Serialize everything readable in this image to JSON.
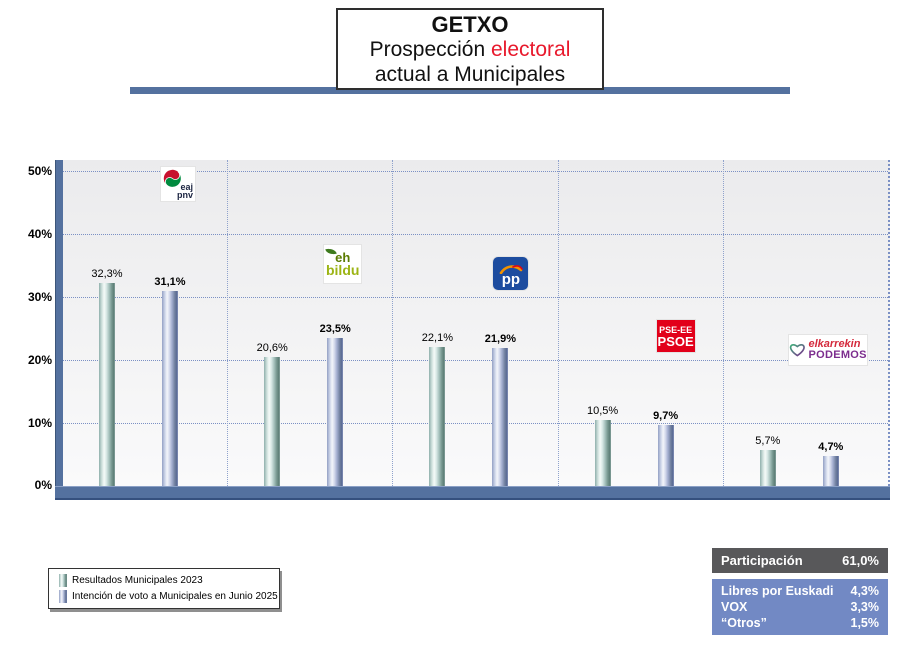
{
  "title": {
    "line1": "GETXO",
    "line2_black": "Prospección ",
    "line2_red": "electoral",
    "line3": "actual a Municipales"
  },
  "chart_data": {
    "type": "bar",
    "title": "GETXO Prospección electoral actual a Municipales",
    "categories": [
      "EAJ-PNV",
      "EH Bildu",
      "PP",
      "PSE-EE PSOE",
      "Elkarrekin Podemos"
    ],
    "series": [
      {
        "name": "Resultados Municipales 2023",
        "values": [
          32.3,
          20.6,
          22.1,
          10.5,
          5.7
        ],
        "labels": [
          "32,3%",
          "20,6%",
          "22,1%",
          "10,5%",
          "5,7%"
        ],
        "color": "#7f9e9a"
      },
      {
        "name": "Intención de voto a Municipales en Junio 2025",
        "values": [
          31.1,
          23.5,
          21.9,
          9.7,
          4.7
        ],
        "labels": [
          "31,1%",
          "23,5%",
          "21,9%",
          "9,7%",
          "4,7%"
        ],
        "color": "#6b7fae"
      }
    ],
    "xlabel": "",
    "ylabel": "",
    "ylim": [
      0,
      50
    ],
    "yticks": [
      "50%",
      "40%",
      "30%",
      "20%",
      "10%",
      "0%"
    ],
    "grid": true,
    "legend_position": "bottom-left"
  },
  "logos": {
    "pnv": {
      "line1": "eaj",
      "line2": "pnv"
    },
    "bildu": {
      "line1": "eh",
      "line2": "bildu"
    },
    "pp": {
      "text": "pp"
    },
    "psoe": {
      "line1": "PSE-EE",
      "line2": "PSOE"
    },
    "podemos": {
      "line1": "elkarrekin",
      "line2": "PODEMOS"
    }
  },
  "participation": {
    "label": "Participación",
    "value": "61,0%"
  },
  "others_table": {
    "rows": [
      {
        "label": "Libres por Euskadi",
        "value": "4,3%"
      },
      {
        "label": "VOX",
        "value": "3,3%"
      },
      {
        "label": "“Otros”",
        "value": "1,5%"
      }
    ]
  },
  "colors": {
    "axis_blue": "#54719f",
    "grid_dotted": "#7b90c4",
    "participation_bg": "#58585a",
    "others_bg": "#7289c4",
    "title_accent_red": "#e8192c"
  }
}
